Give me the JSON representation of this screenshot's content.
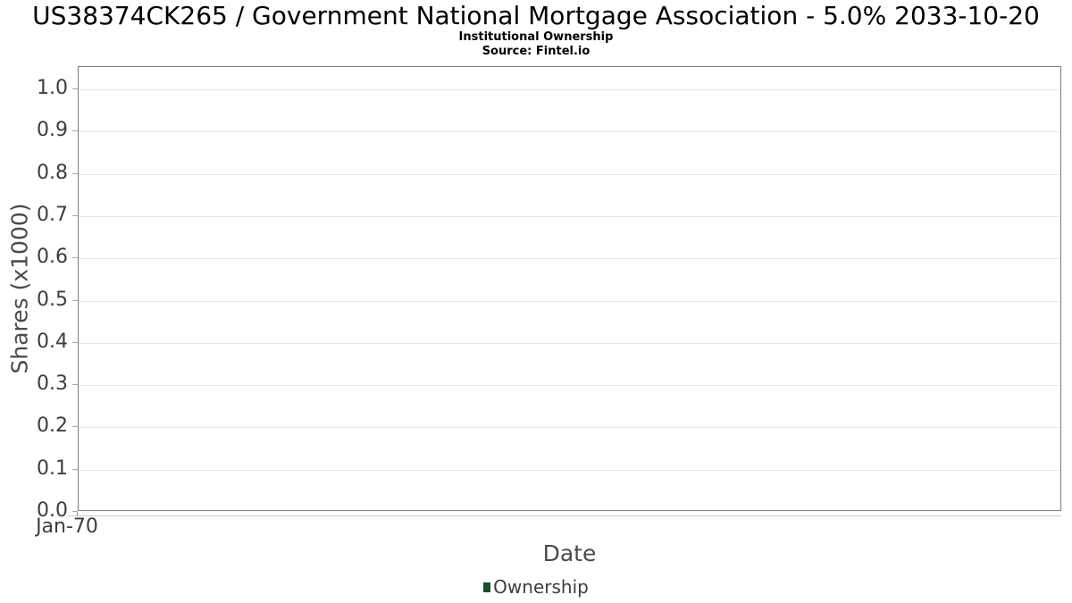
{
  "header": {
    "title": "US38374CK265 / Government National Mortgage Association - 5.0% 2033-10-20",
    "subtitle": "Institutional Ownership",
    "source": "Source: Fintel.io"
  },
  "chart_data": {
    "type": "bar",
    "title": "US38374CK265 / Government National Mortgage Association - 5.0% 2033-10-20",
    "subtitle": "Institutional Ownership",
    "source": "Source: Fintel.io",
    "xlabel": "Date",
    "ylabel": "Shares (x1000)",
    "ylim": [
      0,
      1.053
    ],
    "yticks": [
      0,
      0.1,
      0.2,
      0.3,
      0.4,
      0.5,
      0.6,
      0.7,
      0.8,
      0.9,
      1.0
    ],
    "ytick_decimals": 1,
    "xtick_labels": [
      "Jan-70"
    ],
    "grid": true,
    "legend_position": "bottom",
    "series": [
      {
        "name": "Ownership",
        "color": "#1e4d2b",
        "x": [],
        "values": []
      }
    ]
  },
  "colors": {
    "series_green": "#1e4d2b",
    "plot_border": "#7f7f7f",
    "gridline": "#e8e8e8",
    "tick_text": "#3d3d3d",
    "axis_name_text": "#4a4a4a"
  }
}
